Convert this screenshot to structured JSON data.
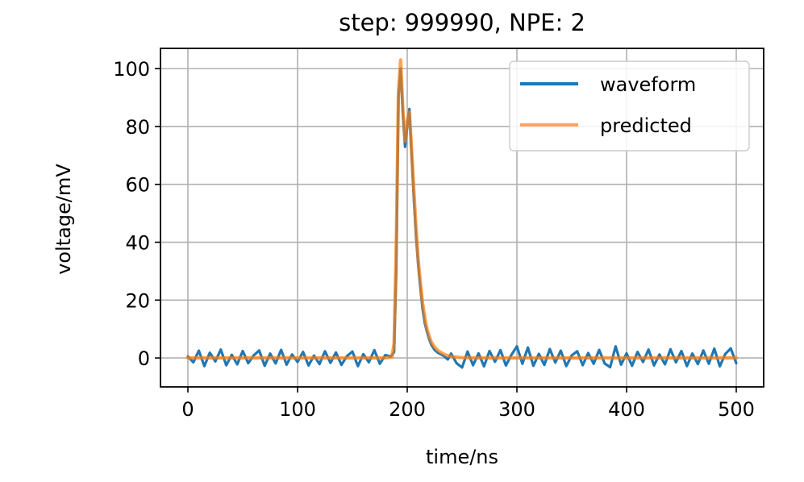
{
  "chart_data": {
    "type": "line",
    "title": "step: 999990, NPE: 2",
    "xlabel": "time/ns",
    "ylabel": "voltage/mV",
    "xlim": [
      -25,
      525
    ],
    "ylim": [
      -10,
      107
    ],
    "xticks": [
      0,
      100,
      200,
      300,
      400,
      500
    ],
    "yticks": [
      0,
      20,
      40,
      60,
      80,
      100
    ],
    "x_tick_labels": [
      "0",
      "100",
      "200",
      "300",
      "400",
      "500"
    ],
    "y_tick_labels": [
      "0",
      "20",
      "40",
      "60",
      "80",
      "100"
    ],
    "grid": true,
    "legend_position": "top-right",
    "series": [
      {
        "name": "waveform",
        "color": "#1f77b4",
        "x": [
          0,
          5,
          10,
          15,
          20,
          25,
          30,
          35,
          40,
          45,
          50,
          55,
          60,
          65,
          70,
          75,
          80,
          85,
          90,
          95,
          100,
          105,
          110,
          115,
          120,
          125,
          130,
          135,
          140,
          145,
          150,
          155,
          160,
          165,
          170,
          175,
          180,
          185,
          188,
          190,
          192,
          194,
          196,
          198,
          200,
          202,
          204,
          206,
          208,
          210,
          212,
          214,
          216,
          218,
          220,
          222,
          225,
          228,
          231,
          234,
          237,
          240,
          245,
          250,
          255,
          260,
          265,
          270,
          275,
          280,
          285,
          290,
          295,
          300,
          305,
          310,
          315,
          320,
          325,
          330,
          335,
          340,
          345,
          350,
          355,
          360,
          365,
          370,
          375,
          380,
          385,
          390,
          395,
          400,
          405,
          410,
          415,
          420,
          425,
          430,
          435,
          440,
          445,
          450,
          455,
          460,
          465,
          470,
          475,
          480,
          485,
          490,
          495,
          500
        ],
        "y": [
          0.5,
          -1.5,
          2.5,
          -2.8,
          1.8,
          -1.2,
          2.9,
          -2.5,
          1.1,
          -2.2,
          2.4,
          -1.8,
          0.9,
          2.6,
          -2.7,
          1.5,
          -1.9,
          2.8,
          -2.3,
          1.2,
          -1.4,
          2.1,
          -2.6,
          0.8,
          -2.1,
          2.3,
          -1.7,
          1.9,
          -2.4,
          0.6,
          2.2,
          -2.8,
          1.3,
          -1.5,
          2.7,
          -2.0,
          1.0,
          0.5,
          2.0,
          30.0,
          90.0,
          100.0,
          84.0,
          73.0,
          80.0,
          86.0,
          70.0,
          55.0,
          42.0,
          32.0,
          24.0,
          17.0,
          12.0,
          9.0,
          6.5,
          4.5,
          2.8,
          1.8,
          1.2,
          0.5,
          -0.5,
          1.5,
          -1.8,
          -3.3,
          2.2,
          -2.5,
          1.6,
          -2.9,
          2.4,
          -1.3,
          2.7,
          -2.6,
          1.1,
          4.0,
          -2.0,
          3.6,
          -2.7,
          1.4,
          -2.4,
          3.1,
          -1.6,
          2.5,
          -2.8,
          0.9,
          2.3,
          -2.5,
          1.7,
          -2.0,
          2.8,
          -1.9,
          -3.2,
          4.0,
          -2.3,
          1.6,
          -2.7,
          2.1,
          -1.4,
          2.9,
          -2.6,
          1.2,
          -2.2,
          3.0,
          -1.5,
          2.4,
          -2.8,
          1.5,
          -2.1,
          2.6,
          -2.0,
          3.2,
          -2.9,
          1.4,
          3.3,
          -1.8
        ]
      },
      {
        "name": "predicted",
        "color": "#ff7f0e",
        "x": [
          0,
          50,
          100,
          150,
          180,
          186,
          188,
          190,
          192,
          194,
          196,
          198,
          200,
          202,
          204,
          206,
          208,
          210,
          212,
          214,
          216,
          218,
          220,
          222,
          225,
          228,
          231,
          234,
          237,
          240,
          245,
          250,
          260,
          300,
          400,
          500
        ],
        "y": [
          0,
          0,
          0,
          0,
          0,
          0.3,
          5,
          40,
          92,
          103,
          86,
          75,
          82,
          85,
          72,
          58,
          45,
          34,
          26,
          19,
          14,
          10,
          7.5,
          5.5,
          3.8,
          2.6,
          1.8,
          1.2,
          0.8,
          0.5,
          0.3,
          0.1,
          0,
          0,
          0,
          0
        ]
      }
    ]
  }
}
